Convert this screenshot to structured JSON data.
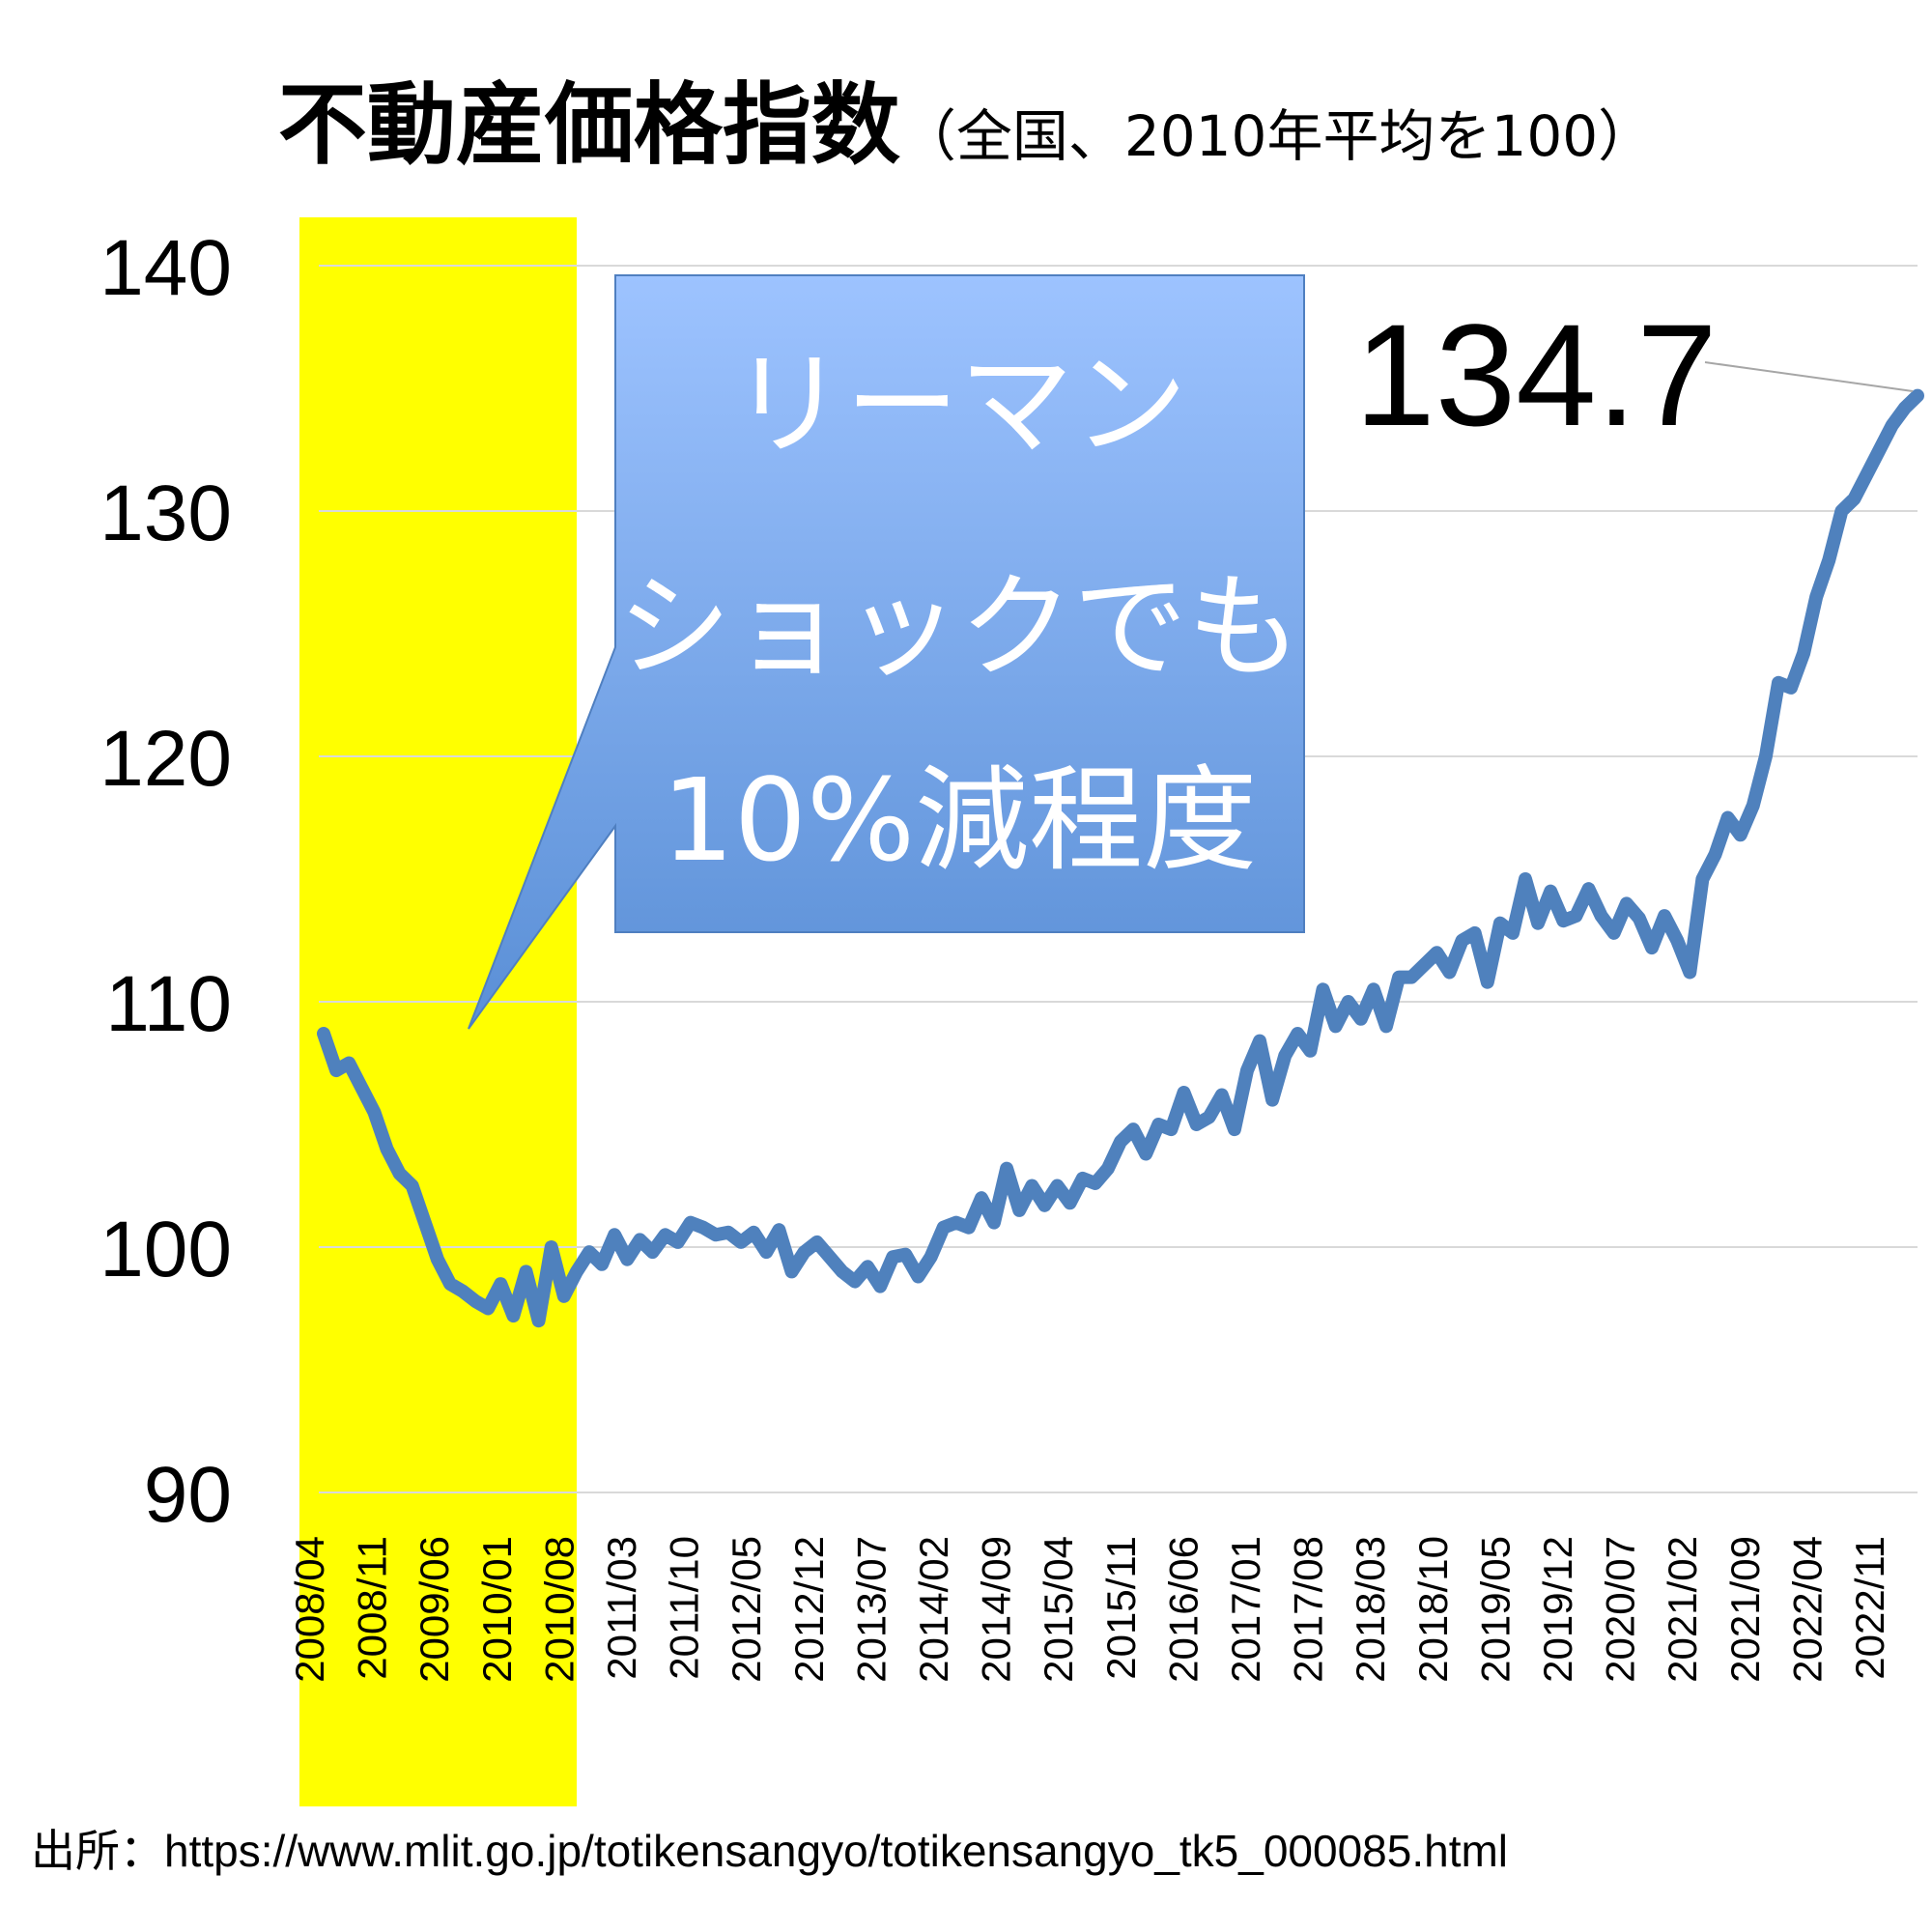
{
  "title": "不動産価格指数",
  "subtitle": "（全国、2010年平均を100）",
  "source": "出所：https://www.mlit.go.jp/totikensangyo/totikensangyo_tk5_000085.html",
  "callout": {
    "lines": [
      "リーマン",
      "ショックでも",
      "10%減程度"
    ]
  },
  "last_value_label": "134.7",
  "colors": {
    "line": "#4f81bd",
    "highlight": "#ffff00",
    "callout_top": "#9dc3ff",
    "callout_bottom": "#5a8fd6",
    "grid": "#d9d9d9"
  },
  "chart_data": {
    "type": "line",
    "ylim": [
      90,
      140
    ],
    "yticks": [
      90,
      100,
      110,
      120,
      130,
      140
    ],
    "xtick_labels": [
      "2008/04",
      "2008/11",
      "2009/06",
      "2010/01",
      "2010/08",
      "2011/03",
      "2011/10",
      "2012/05",
      "2012/12",
      "2013/07",
      "2014/02",
      "2014/09",
      "2015/04",
      "2015/11",
      "2016/06",
      "2017/01",
      "2017/08",
      "2018/03",
      "2018/10",
      "2019/05",
      "2019/12",
      "2020/07",
      "2021/02",
      "2021/09",
      "2022/04",
      "2022/11"
    ],
    "highlight_range": [
      "2008/04",
      "2010/08"
    ],
    "grid": true,
    "series": [
      {
        "values": [
          108.7,
          107.2,
          107.5,
          106.5,
          105.5,
          104.0,
          103.0,
          102.5,
          101.0,
          99.5,
          98.5,
          98.2,
          97.8,
          97.5,
          98.5,
          97.2,
          99.0,
          97.0,
          100.0,
          98.0,
          99.0,
          99.8,
          99.3,
          100.5,
          99.5,
          100.3,
          99.8,
          100.5,
          100.2,
          101.0,
          100.8,
          100.5,
          100.6,
          100.2,
          100.6,
          99.8,
          100.7,
          99.0,
          99.8,
          100.2,
          99.6,
          99.0,
          98.6,
          99.2,
          98.4,
          99.6,
          99.7,
          98.8,
          99.6,
          100.8,
          101.0,
          100.8,
          102.0,
          101.0,
          103.2,
          101.5,
          102.5,
          101.7,
          102.5,
          101.8,
          102.8,
          102.6,
          103.2,
          104.3,
          104.8,
          103.8,
          105.0,
          104.8,
          106.3,
          105.0,
          105.3,
          106.2,
          104.8,
          107.2,
          108.4,
          106.0,
          107.8,
          108.7,
          108.0,
          110.5,
          109.0,
          110.0,
          109.3,
          110.5,
          109.0,
          111.0,
          111.0,
          111.5,
          112.0,
          111.2,
          112.5,
          112.8,
          110.8,
          113.2,
          112.8,
          115.0,
          113.2,
          114.5,
          113.3,
          113.5,
          114.6,
          113.5,
          112.8,
          114.0,
          113.4,
          112.2,
          113.5,
          112.5,
          111.2,
          115.0,
          116.0,
          117.5,
          116.8,
          118.0,
          120.0,
          123.0,
          122.8,
          124.2,
          126.5,
          128.0,
          130.0,
          130.5,
          131.5,
          132.5,
          133.5,
          134.2,
          134.7
        ]
      }
    ]
  }
}
